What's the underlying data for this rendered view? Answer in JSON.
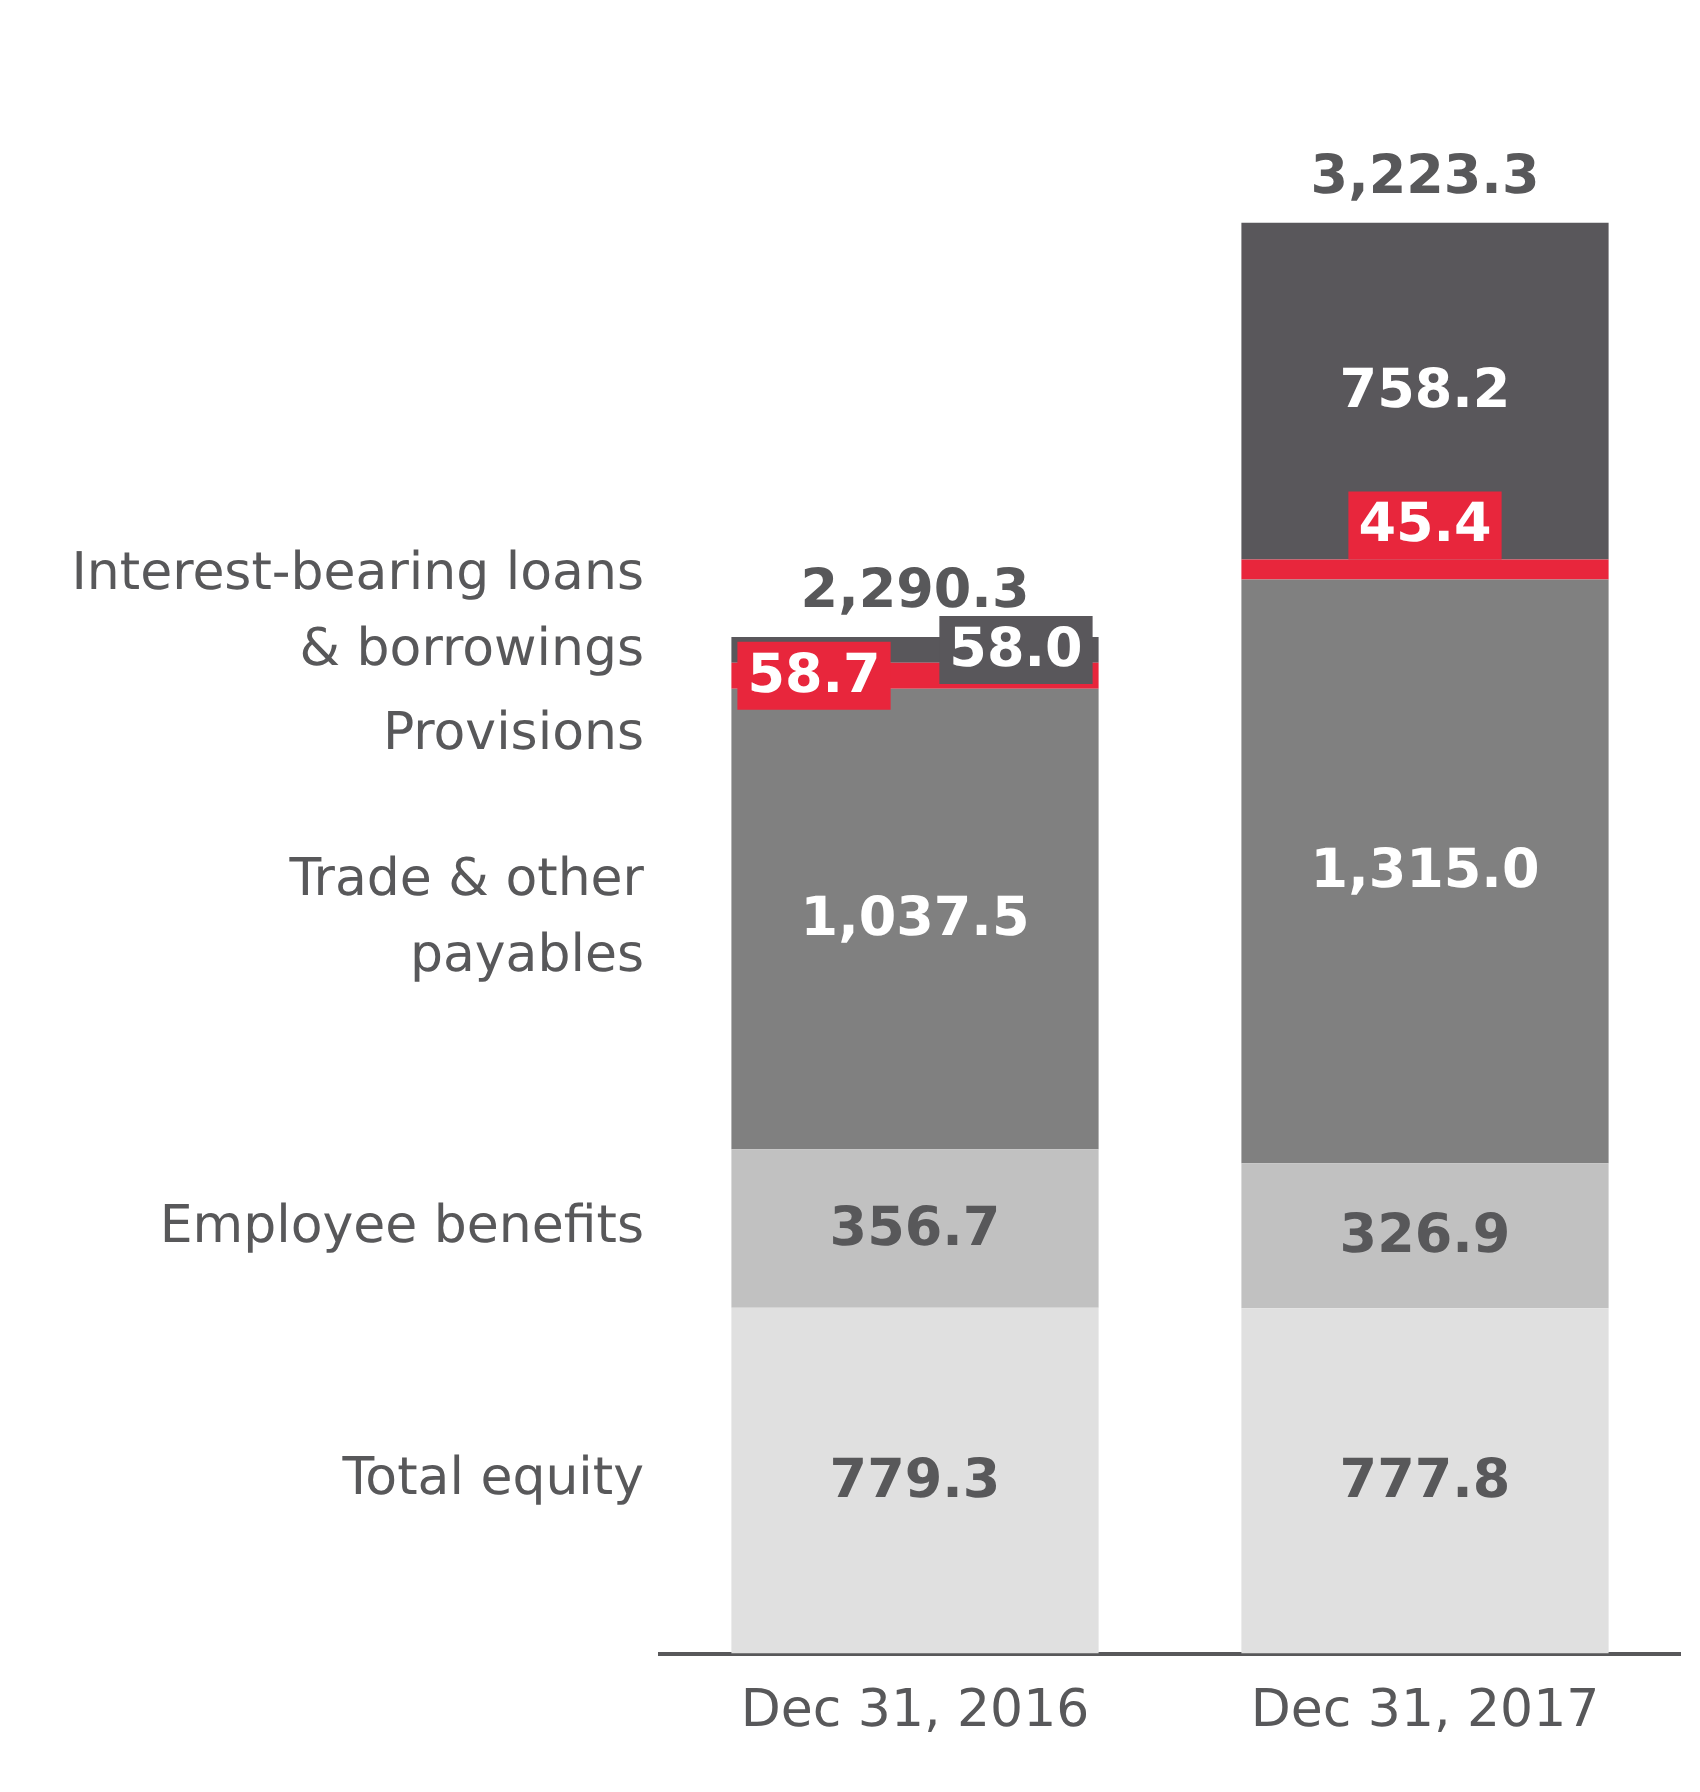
{
  "chart_data": {
    "type": "bar",
    "stacked": true,
    "categories": [
      "Dec 31, 2016",
      "Dec 31, 2017"
    ],
    "series": [
      {
        "name": "Total equity",
        "color": "#e0e0e0",
        "values": [
          779.3,
          777.8
        ],
        "value_labels": [
          "779.3",
          "777.8"
        ]
      },
      {
        "name": "Employee benefits",
        "color": "#c1c1c1",
        "values": [
          356.7,
          326.9
        ],
        "value_labels": [
          "356.7",
          "326.9"
        ]
      },
      {
        "name": "Trade & other payables",
        "color": "#808080",
        "values": [
          1037.5,
          1315.0
        ],
        "value_labels": [
          "1,037.5",
          "1,315.0"
        ]
      },
      {
        "name": "Provisions",
        "color": "#e8263c",
        "values": [
          58.7,
          45.4
        ],
        "value_labels": [
          "58.7",
          "45.4"
        ]
      },
      {
        "name": "Interest-bearing loans & borrowings",
        "color": "#59575b",
        "values": [
          58.0,
          758.2
        ],
        "value_labels": [
          "58.0",
          "758.2"
        ]
      }
    ],
    "totals": [
      "2,290.3",
      "3,223.3"
    ],
    "grid": false,
    "legend": false,
    "tick_labels": "x"
  }
}
